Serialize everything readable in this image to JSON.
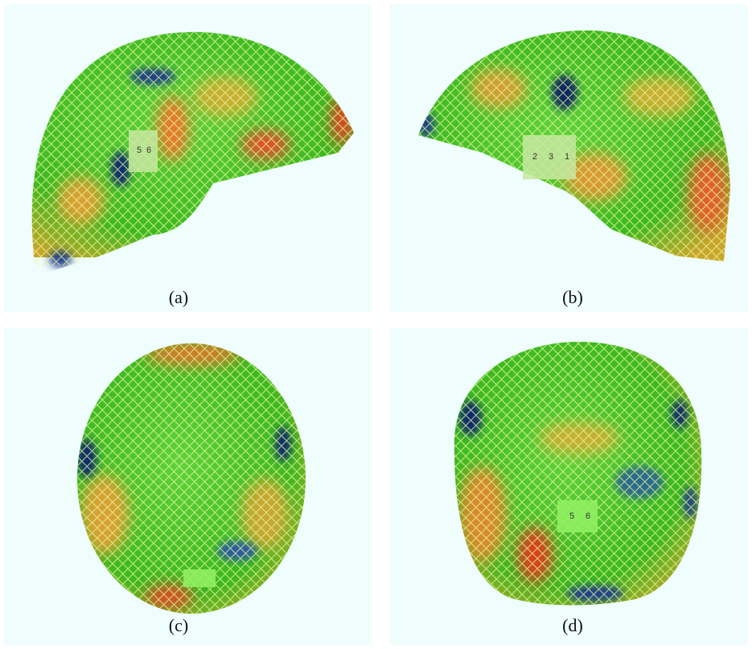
{
  "panels": [
    {
      "label": "(a)",
      "tag": [
        "5",
        "6"
      ]
    },
    {
      "label": "(b)",
      "tag": [
        "2",
        "3",
        "1"
      ]
    },
    {
      "label": "(c)",
      "tag": []
    },
    {
      "label": "(d)",
      "tag": [
        "5",
        "6"
      ]
    }
  ]
}
